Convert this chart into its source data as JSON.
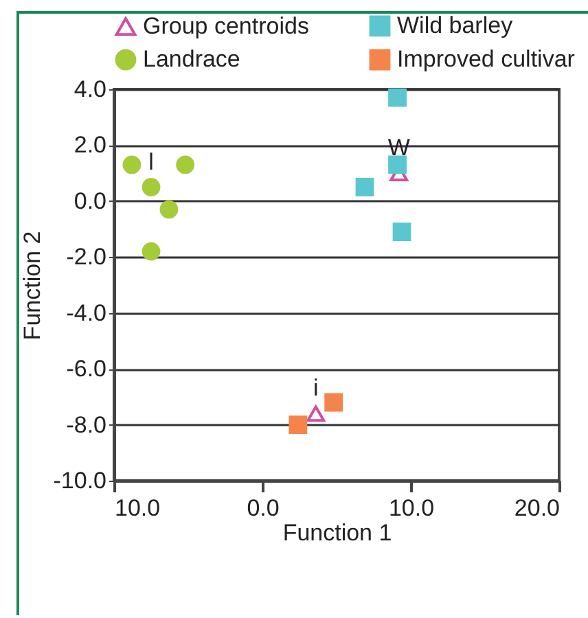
{
  "chart_data": {
    "type": "scatter",
    "xlabel": "Function 1",
    "ylabel": "Function 2",
    "xlim": [
      -10,
      20
    ],
    "ylim": [
      -10,
      4
    ],
    "xticks": [
      {
        "value": -10,
        "label": "10.0"
      },
      {
        "value": 0,
        "label": "0.0"
      },
      {
        "value": 10,
        "label": "10.0"
      },
      {
        "value": 20,
        "label": "20.0"
      }
    ],
    "yticks": [
      {
        "value": 4,
        "label": "4.0"
      },
      {
        "value": 2,
        "label": "2.0"
      },
      {
        "value": 0,
        "label": "0.0"
      },
      {
        "value": -2,
        "label": "-2.0"
      },
      {
        "value": -4,
        "label": "-4.0"
      },
      {
        "value": -6,
        "label": "-6.0"
      },
      {
        "value": -8,
        "label": "-8.0"
      },
      {
        "value": -10,
        "label": "-10.0"
      }
    ],
    "grid": "y",
    "legend": "top left",
    "series": [
      {
        "name": "Group centroids",
        "color": "#cc4fa6",
        "marker": "triangle",
        "x": [
          9.2,
          3.6
        ],
        "values": [
          1.0,
          -7.6
        ]
      },
      {
        "name": "Wild barley",
        "color": "#5bc6d0",
        "marker": "square",
        "x": [
          9.1,
          9.1,
          6.9,
          9.4
        ],
        "values": [
          3.7,
          1.3,
          0.5,
          -1.1
        ]
      },
      {
        "name": "Landrace",
        "color": "#a4cc3a",
        "marker": "circle",
        "x": [
          -8.8,
          -7.5,
          -6.3,
          -5.2,
          -7.5
        ],
        "values": [
          1.3,
          0.5,
          -0.3,
          1.3,
          -1.8
        ]
      },
      {
        "name": "Improved cultivar",
        "color": "#f5844c",
        "marker": "square",
        "x": [
          2.4,
          4.8
        ],
        "values": [
          -8.0,
          -7.2
        ]
      }
    ],
    "annotations": [
      {
        "text": "l",
        "x": -7.5,
        "y": 0.5
      },
      {
        "text": "W",
        "x": 9.2,
        "y": 1.0
      },
      {
        "text": "i",
        "x": 3.6,
        "y": -7.6
      }
    ]
  }
}
